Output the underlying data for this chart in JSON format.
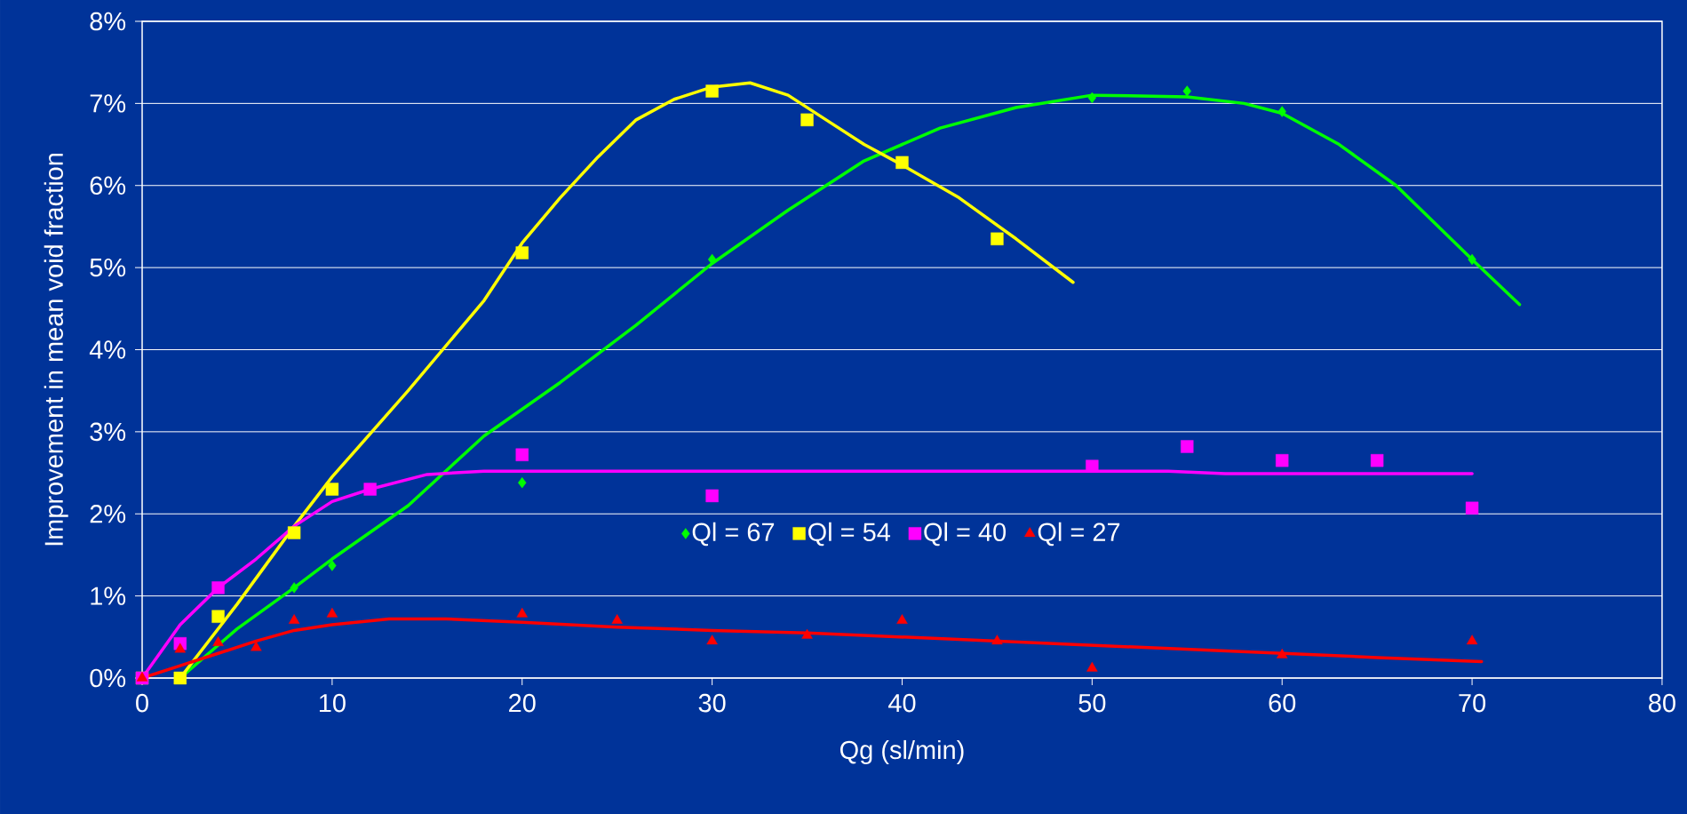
{
  "chart_data": {
    "type": "scatter",
    "xlabel": "Qg (sl/min)",
    "ylabel": "Improvement in mean void fraction",
    "xlim": [
      0,
      80
    ],
    "ylim": [
      0,
      8
    ],
    "xticks": [
      0,
      10,
      20,
      30,
      40,
      50,
      60,
      70,
      80
    ],
    "yticks": [
      {
        "value": 0,
        "label": "0%"
      },
      {
        "value": 1,
        "label": "1%"
      },
      {
        "value": 2,
        "label": "2%"
      },
      {
        "value": 3,
        "label": "3%"
      },
      {
        "value": 4,
        "label": "4%"
      },
      {
        "value": 5,
        "label": "5%"
      },
      {
        "value": 6,
        "label": "6%"
      },
      {
        "value": 7,
        "label": "7%"
      },
      {
        "value": 8,
        "label": "8%"
      }
    ],
    "grid": "y",
    "legend": "bottom",
    "series": [
      {
        "name": "Ql = 67",
        "color": "#00ff00",
        "marker": "diamond",
        "x": [
          8,
          10,
          20,
          30,
          50,
          55,
          60,
          70
        ],
        "values": [
          1.1,
          1.37,
          2.38,
          5.1,
          7.07,
          7.15,
          6.9,
          5.1
        ]
      },
      {
        "name": "Ql = 54",
        "color": "#ffff00",
        "marker": "square",
        "x": [
          0,
          2,
          4,
          8,
          10,
          20,
          30,
          35,
          40,
          45
        ],
        "values": [
          0.0,
          0.0,
          0.75,
          1.77,
          2.3,
          5.18,
          7.15,
          6.8,
          6.28,
          5.35
        ]
      },
      {
        "name": "Ql = 40",
        "color": "#ff00ff",
        "marker": "square",
        "x": [
          0,
          2,
          4,
          12,
          20,
          30,
          50,
          55,
          60,
          65,
          70
        ],
        "values": [
          0.0,
          0.42,
          1.1,
          2.3,
          2.72,
          2.22,
          2.58,
          2.82,
          2.65,
          2.65,
          2.07
        ]
      },
      {
        "name": "Ql = 27",
        "color": "#ff0000",
        "marker": "triangle",
        "x": [
          0,
          2,
          4,
          6,
          8,
          10,
          20,
          25,
          30,
          35,
          40,
          45,
          50,
          60,
          70
        ],
        "values": [
          0.0,
          0.35,
          0.43,
          0.37,
          0.7,
          0.78,
          0.78,
          0.7,
          0.45,
          0.52,
          0.7,
          0.45,
          0.12,
          0.28,
          0.45
        ]
      },
      {
        "type": "line",
        "color": "#00ff00",
        "marker": "none",
        "x": [
          2,
          5,
          8,
          10,
          14,
          18,
          22,
          26,
          30,
          34,
          38,
          42,
          46,
          50,
          55,
          58,
          60,
          63,
          66,
          70,
          72.5
        ],
        "values": [
          0.0,
          0.6,
          1.1,
          1.45,
          2.1,
          2.95,
          3.6,
          4.3,
          5.05,
          5.7,
          6.3,
          6.7,
          6.95,
          7.1,
          7.08,
          7.0,
          6.88,
          6.5,
          6.0,
          5.1,
          4.55
        ]
      },
      {
        "type": "line",
        "color": "#ffff00",
        "marker": "none",
        "x": [
          2,
          5,
          8,
          10,
          14,
          18,
          20,
          22,
          24,
          26,
          28,
          30,
          32,
          34,
          36,
          38,
          40,
          43,
          46,
          49
        ],
        "values": [
          0.0,
          0.9,
          1.85,
          2.45,
          3.5,
          4.6,
          5.3,
          5.85,
          6.35,
          6.8,
          7.05,
          7.2,
          7.25,
          7.1,
          6.8,
          6.5,
          6.25,
          5.85,
          5.35,
          4.82
        ]
      },
      {
        "type": "line",
        "color": "#ff00ff",
        "marker": "none",
        "x": [
          0,
          2,
          4,
          6,
          8,
          10,
          12,
          15,
          18,
          40,
          54,
          57,
          70
        ],
        "values": [
          0.0,
          0.65,
          1.1,
          1.45,
          1.85,
          2.15,
          2.3,
          2.48,
          2.52,
          2.52,
          2.52,
          2.49,
          2.49
        ]
      },
      {
        "type": "line",
        "color": "#ff0000",
        "marker": "none",
        "x": [
          0,
          2,
          4,
          6,
          8,
          10,
          13,
          16,
          20,
          25,
          30,
          35,
          40,
          45,
          50,
          55,
          60,
          65,
          70.5
        ],
        "values": [
          0.0,
          0.15,
          0.3,
          0.45,
          0.58,
          0.65,
          0.72,
          0.72,
          0.68,
          0.62,
          0.58,
          0.55,
          0.5,
          0.45,
          0.4,
          0.35,
          0.3,
          0.25,
          0.2
        ]
      }
    ]
  }
}
